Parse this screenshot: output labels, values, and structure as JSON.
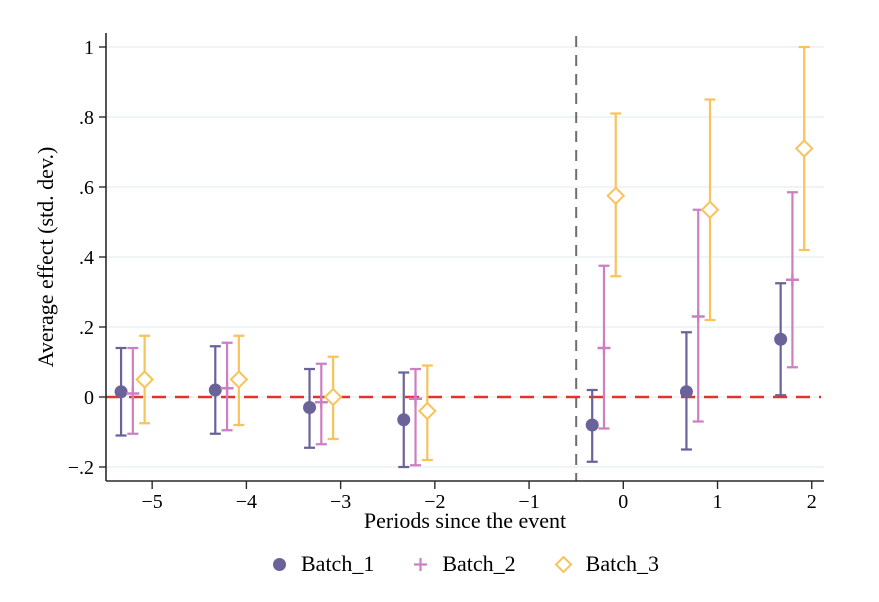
{
  "figure": {
    "background": "#ffffff",
    "text_color": "#000000",
    "axis_color": "#2a2a2a"
  },
  "chart_data": {
    "type": "scatter",
    "subtype": "event-study-errorbar",
    "title": "",
    "xlabel": "Periods since the event",
    "ylabel": "Average effect (std. dev.)",
    "xlim": [
      -5.49,
      2.13
    ],
    "ylim": [
      -0.24,
      1.04
    ],
    "x_ticks": {
      "values": [
        -5,
        -4,
        -3,
        -2,
        -1,
        0,
        1,
        2
      ],
      "labels": [
        "−5",
        "−4",
        "−3",
        "−2",
        "−1",
        "0",
        "1",
        "2"
      ]
    },
    "y_ticks": {
      "values": [
        1,
        0.8,
        0.6,
        0.4,
        0.2,
        0,
        -0.2
      ],
      "labels": [
        "1",
        ".8",
        ".6",
        ".4",
        ".2",
        "0",
        "−.2"
      ]
    },
    "grid": {
      "horizontal": true,
      "color": "#e4efed"
    },
    "reference_lines": [
      {
        "orientation": "horizontal",
        "value": 0,
        "style": "dashed",
        "color": "#e2342a"
      },
      {
        "orientation": "vertical",
        "value": -0.5,
        "style": "dashed",
        "color": "#6e6e6e"
      }
    ],
    "legend": {
      "position": "bottom"
    },
    "series": [
      {
        "name": "Batch_1",
        "marker": "filled-circle",
        "color": "#6a6399",
        "x_offset": -0.33,
        "points": [
          {
            "t": -5,
            "estimate": 0.015,
            "ci_low": -0.11,
            "ci_high": 0.14
          },
          {
            "t": -4,
            "estimate": 0.02,
            "ci_low": -0.105,
            "ci_high": 0.145
          },
          {
            "t": -3,
            "estimate": -0.03,
            "ci_low": -0.145,
            "ci_high": 0.08
          },
          {
            "t": -2,
            "estimate": -0.065,
            "ci_low": -0.2,
            "ci_high": 0.07
          },
          {
            "t": 0,
            "estimate": -0.08,
            "ci_low": -0.185,
            "ci_high": 0.02
          },
          {
            "t": 1,
            "estimate": 0.015,
            "ci_low": -0.15,
            "ci_high": 0.185
          },
          {
            "t": 2,
            "estimate": 0.165,
            "ci_low": 0.005,
            "ci_high": 0.325
          }
        ]
      },
      {
        "name": "Batch_2",
        "marker": "plus",
        "color": "#cc7fc3",
        "x_offset": -0.205,
        "points": [
          {
            "t": -5,
            "estimate": 0.01,
            "ci_low": -0.105,
            "ci_high": 0.14
          },
          {
            "t": -4,
            "estimate": 0.025,
            "ci_low": -0.095,
            "ci_high": 0.155
          },
          {
            "t": -3,
            "estimate": -0.015,
            "ci_low": -0.135,
            "ci_high": 0.095
          },
          {
            "t": -2,
            "estimate": -0.005,
            "ci_low": -0.195,
            "ci_high": 0.08
          },
          {
            "t": 0,
            "estimate": 0.14,
            "ci_low": -0.09,
            "ci_high": 0.375
          },
          {
            "t": 1,
            "estimate": 0.23,
            "ci_low": -0.07,
            "ci_high": 0.535
          },
          {
            "t": 2,
            "estimate": 0.335,
            "ci_low": 0.085,
            "ci_high": 0.585
          }
        ]
      },
      {
        "name": "Batch_3",
        "marker": "open-diamond",
        "color": "#f8c35c",
        "x_offset": -0.08,
        "points": [
          {
            "t": -5,
            "estimate": 0.05,
            "ci_low": -0.075,
            "ci_high": 0.175
          },
          {
            "t": -4,
            "estimate": 0.05,
            "ci_low": -0.08,
            "ci_high": 0.175
          },
          {
            "t": -3,
            "estimate": 0.0,
            "ci_low": -0.12,
            "ci_high": 0.115
          },
          {
            "t": -2,
            "estimate": -0.04,
            "ci_low": -0.18,
            "ci_high": 0.09
          },
          {
            "t": 0,
            "estimate": 0.575,
            "ci_low": 0.345,
            "ci_high": 0.81
          },
          {
            "t": 1,
            "estimate": 0.535,
            "ci_low": 0.22,
            "ci_high": 0.85
          },
          {
            "t": 2,
            "estimate": 0.71,
            "ci_low": 0.42,
            "ci_high": 1.0
          }
        ]
      }
    ]
  }
}
